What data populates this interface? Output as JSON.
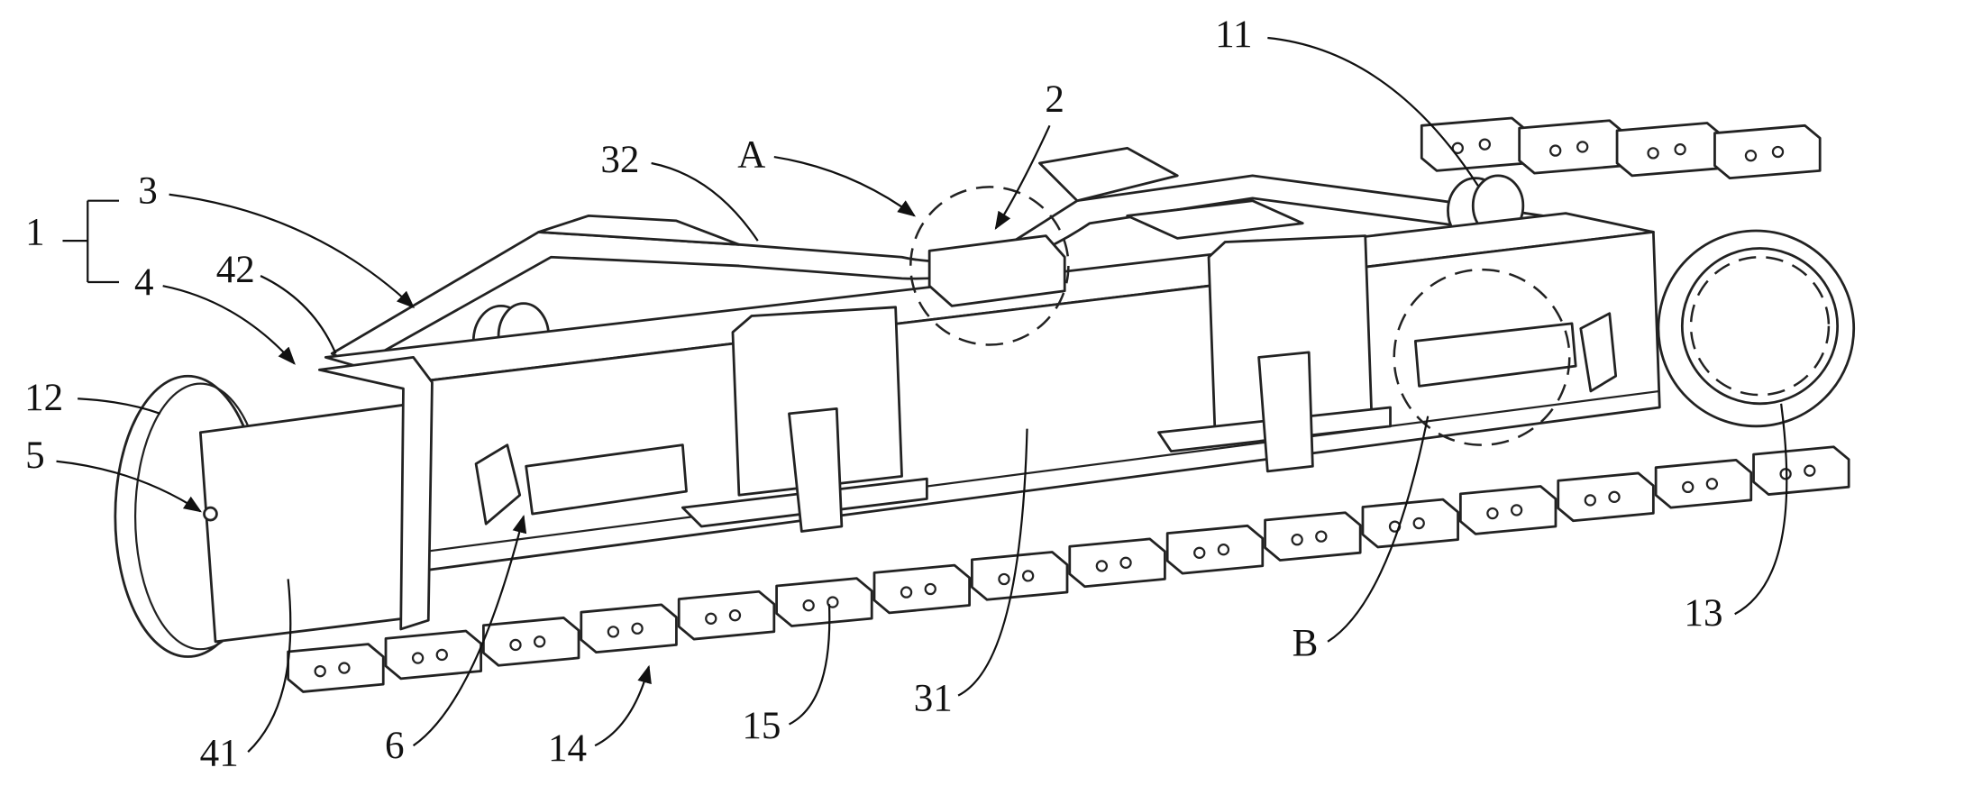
{
  "labels": [
    {
      "text": "1"
    },
    {
      "text": "3"
    },
    {
      "text": "4"
    },
    {
      "text": "42"
    },
    {
      "text": "12"
    },
    {
      "text": "5"
    },
    {
      "text": "41"
    },
    {
      "text": "6"
    },
    {
      "text": "14"
    },
    {
      "text": "15"
    },
    {
      "text": "31"
    },
    {
      "text": "B"
    },
    {
      "text": "13"
    },
    {
      "text": "11"
    },
    {
      "text": "2"
    },
    {
      "text": "A"
    },
    {
      "text": "32"
    }
  ]
}
